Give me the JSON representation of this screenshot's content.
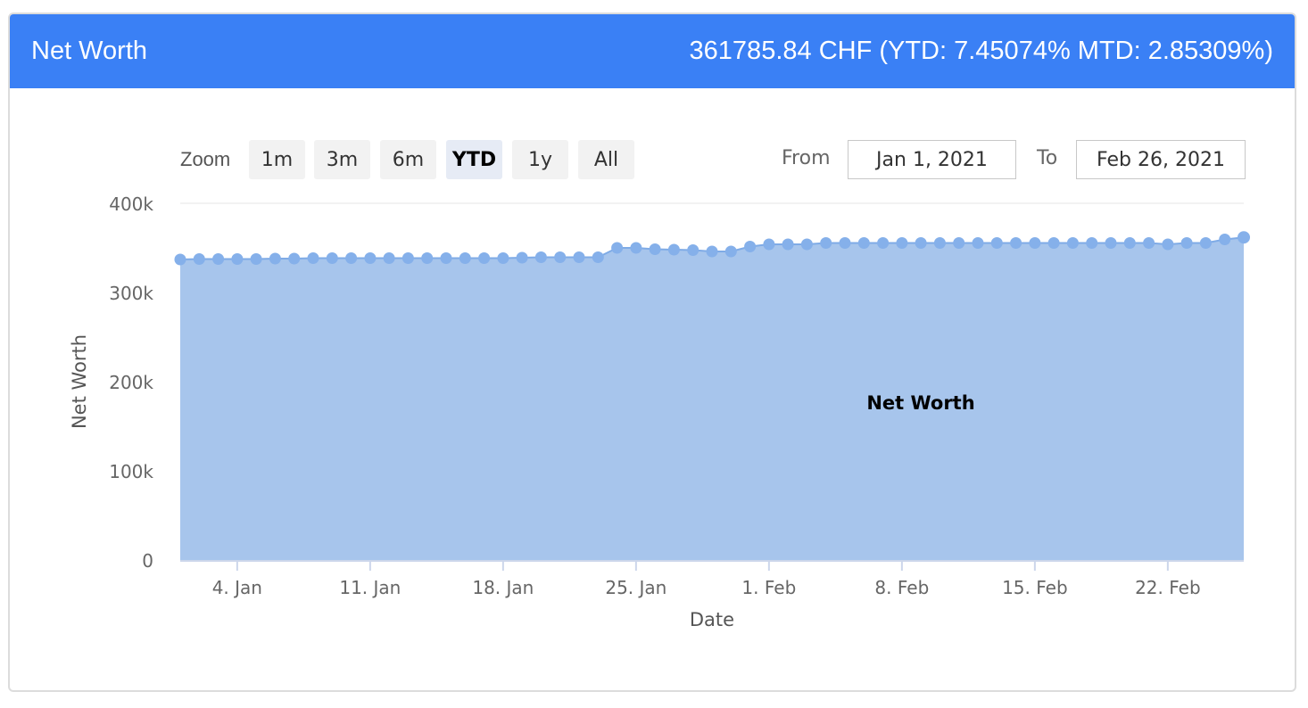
{
  "header": {
    "title": "Net Worth",
    "summary": "361785.84 CHF (YTD: 7.45074% MTD: 2.85309%)"
  },
  "range_selector": {
    "zoom_label": "Zoom",
    "buttons": [
      "1m",
      "3m",
      "6m",
      "YTD",
      "1y",
      "All"
    ],
    "active": "YTD",
    "from_label": "From",
    "from_value": "Jan 1, 2021",
    "to_label": "To",
    "to_value": "Feb 26, 2021"
  },
  "colors": {
    "header_bg": "#3a80f5",
    "area_fill": "#a7c5ec",
    "line": "#7fabe6",
    "marker": "#85b0ea"
  },
  "chart_data": {
    "type": "area",
    "title": "",
    "xlabel": "Date",
    "ylabel": "Net Worth",
    "series_label": "Net Worth",
    "ylim": [
      0,
      400000
    ],
    "yticks": [
      0,
      100000,
      200000,
      300000,
      400000
    ],
    "ytick_labels": [
      "0",
      "100k",
      "200k",
      "300k",
      "400k"
    ],
    "xticks": [
      "2021-01-04",
      "2021-01-11",
      "2021-01-18",
      "2021-01-25",
      "2021-02-01",
      "2021-02-08",
      "2021-02-15",
      "2021-02-22"
    ],
    "xtick_labels": [
      "4. Jan",
      "11. Jan",
      "18. Jan",
      "25. Jan",
      "1. Feb",
      "8. Feb",
      "15. Feb",
      "22. Feb"
    ],
    "xlim": [
      "2021-01-01",
      "2021-02-26"
    ],
    "grid": true,
    "legend": false,
    "series": [
      {
        "name": "Net Worth",
        "points": [
          [
            "2021-01-01",
            337000
          ],
          [
            "2021-01-02",
            337500
          ],
          [
            "2021-01-03",
            337500
          ],
          [
            "2021-01-04",
            337500
          ],
          [
            "2021-01-05",
            337500
          ],
          [
            "2021-01-06",
            338000
          ],
          [
            "2021-01-07",
            338000
          ],
          [
            "2021-01-08",
            338500
          ],
          [
            "2021-01-09",
            338500
          ],
          [
            "2021-01-10",
            338500
          ],
          [
            "2021-01-11",
            338500
          ],
          [
            "2021-01-12",
            338500
          ],
          [
            "2021-01-13",
            338500
          ],
          [
            "2021-01-14",
            338500
          ],
          [
            "2021-01-15",
            338500
          ],
          [
            "2021-01-16",
            338500
          ],
          [
            "2021-01-17",
            338500
          ],
          [
            "2021-01-18",
            338500
          ],
          [
            "2021-01-19",
            339000
          ],
          [
            "2021-01-20",
            339500
          ],
          [
            "2021-01-21",
            339500
          ],
          [
            "2021-01-22",
            339500
          ],
          [
            "2021-01-23",
            339500
          ],
          [
            "2021-01-24",
            350000
          ],
          [
            "2021-01-25",
            350000
          ],
          [
            "2021-01-26",
            348500
          ],
          [
            "2021-01-27",
            348000
          ],
          [
            "2021-01-28",
            347500
          ],
          [
            "2021-01-29",
            346000
          ],
          [
            "2021-01-30",
            346000
          ],
          [
            "2021-01-31",
            351500
          ],
          [
            "2021-02-01",
            354000
          ],
          [
            "2021-02-02",
            354000
          ],
          [
            "2021-02-03",
            354000
          ],
          [
            "2021-02-04",
            355500
          ],
          [
            "2021-02-05",
            355500
          ],
          [
            "2021-02-06",
            355500
          ],
          [
            "2021-02-07",
            355500
          ],
          [
            "2021-02-08",
            355500
          ],
          [
            "2021-02-09",
            355500
          ],
          [
            "2021-02-10",
            355500
          ],
          [
            "2021-02-11",
            355500
          ],
          [
            "2021-02-12",
            355500
          ],
          [
            "2021-02-13",
            355500
          ],
          [
            "2021-02-14",
            355500
          ],
          [
            "2021-02-15",
            355500
          ],
          [
            "2021-02-16",
            355500
          ],
          [
            "2021-02-17",
            355500
          ],
          [
            "2021-02-18",
            355500
          ],
          [
            "2021-02-19",
            355500
          ],
          [
            "2021-02-20",
            355500
          ],
          [
            "2021-02-21",
            355500
          ],
          [
            "2021-02-22",
            354000
          ],
          [
            "2021-02-23",
            355500
          ],
          [
            "2021-02-24",
            355500
          ],
          [
            "2021-02-25",
            359500
          ],
          [
            "2021-02-26",
            361786
          ]
        ]
      }
    ]
  }
}
